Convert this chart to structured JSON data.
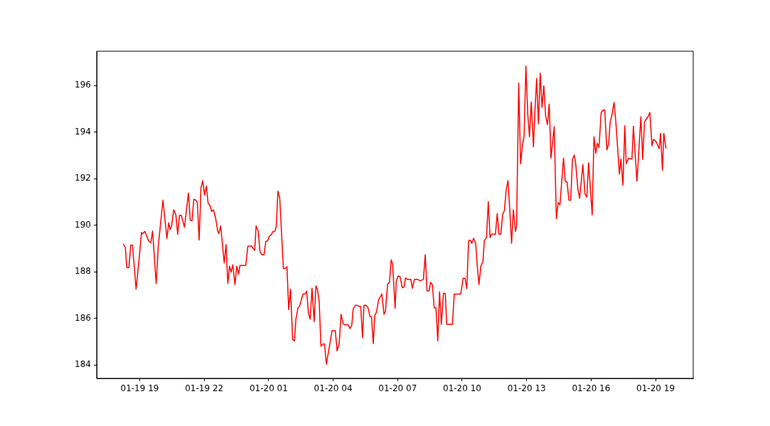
{
  "chart_data": {
    "type": "line",
    "x": [
      "--01-19T18:14",
      "--01-19T18:20",
      "--01-19T18:24",
      "--01-19T18:30",
      "--01-19T18:35",
      "--01-19T18:40",
      "--01-19T18:50",
      "--01-19T18:59",
      "--01-19T19:05",
      "--01-19T19:08",
      "--01-19T19:15",
      "--01-19T19:25",
      "--01-19T19:31",
      "--01-19T19:36",
      "--01-19T19:46",
      "--01-19T19:52",
      "--01-19T20:05",
      "--01-19T20:16",
      "--01-19T20:21",
      "--01-19T20:25",
      "--01-19T20:29",
      "--01-19T20:35",
      "--01-19T20:41",
      "--01-19T20:46",
      "--01-19T20:51",
      "--01-19T20:56",
      "--01-19T21:05",
      "--01-19T21:16",
      "--01-19T21:21",
      "--01-19T21:26",
      "--01-19T21:31",
      "--01-19T21:37",
      "--01-19T21:41",
      "--01-19T21:46",
      "--01-19T21:51",
      "--01-19T21:56",
      "--01-19T22:01",
      "--01-19T22:06",
      "--01-19T22:11",
      "--01-19T22:16",
      "--01-19T22:21",
      "--01-19T22:26",
      "--01-19T22:32",
      "--01-19T22:38",
      "--01-19T22:41",
      "--01-19T22:46",
      "--01-19T22:56",
      "--01-19T23:01",
      "--01-19T23:06",
      "--01-19T23:11",
      "--01-19T23:15",
      "--01-19T23:20",
      "--01-19T23:26",
      "--01-19T23:31",
      "--01-19T23:36",
      "--01-19T23:40",
      "--01-19T23:56",
      "--01-20T00:02",
      "--01-20T00:12",
      "--01-20T00:21",
      "--01-20T00:25",
      "--01-20T00:31",
      "--01-20T00:36",
      "--01-20T00:41",
      "--01-20T00:47",
      "--01-20T00:52",
      "--01-20T00:57",
      "--01-20T01:02",
      "--01-20T01:07",
      "--01-20T01:11",
      "--01-20T01:17",
      "--01-20T01:21",
      "--01-20T01:26",
      "--01-20T01:31",
      "--01-20T01:41",
      "--01-20T01:47",
      "--01-20T01:51",
      "--01-20T01:56",
      "--01-20T02:01",
      "--01-20T02:07",
      "--01-20T02:12",
      "--01-20T02:16",
      "--01-20T02:22",
      "--01-20T02:26",
      "--01-20T02:32",
      "--01-20T02:36",
      "--01-20T02:42",
      "--01-20T02:46",
      "--01-20T02:51",
      "--01-20T02:56",
      "--01-20T03:01",
      "--01-20T03:07",
      "--01-20T03:12",
      "--01-20T03:16",
      "--01-20T03:21",
      "--01-20T03:26",
      "--01-20T03:31",
      "--01-20T03:36",
      "--01-20T03:41",
      "--01-20T03:47",
      "--01-20T03:57",
      "--01-20T04:06",
      "--01-20T04:11",
      "--01-20T04:17",
      "--01-20T04:22",
      "--01-20T04:28",
      "--01-20T04:32",
      "--01-20T04:42",
      "--01-20T04:47",
      "--01-20T04:52",
      "--01-20T04:56",
      "--01-20T05:03",
      "--01-20T05:17",
      "--01-20T05:22",
      "--01-20T05:26",
      "--01-20T05:32",
      "--01-20T05:37",
      "--01-20T05:43",
      "--01-20T05:47",
      "--01-20T05:52",
      "--01-20T05:56",
      "--01-20T06:01",
      "--01-20T06:07",
      "--01-20T06:16",
      "--01-20T06:22",
      "--01-20T06:26",
      "--01-20T06:32",
      "--01-20T06:37",
      "--01-20T06:42",
      "--01-20T06:46",
      "--01-20T06:53",
      "--01-20T06:56",
      "--01-20T07:01",
      "--01-20T07:07",
      "--01-20T07:13",
      "--01-20T07:18",
      "--01-20T07:22",
      "--01-20T07:27",
      "--01-20T07:37",
      "--01-20T07:41",
      "--01-20T07:47",
      "--01-20T07:56",
      "--01-20T08:03",
      "--01-20T08:12",
      "--01-20T08:17",
      "--01-20T08:22",
      "--01-20T08:28",
      "--01-20T08:32",
      "--01-20T08:37",
      "--01-20T08:42",
      "--01-20T08:47",
      "--01-20T08:52",
      "--01-20T08:57",
      "--01-20T09:02",
      "--01-20T09:08",
      "--01-20T09:13",
      "--01-20T09:17",
      "--01-20T09:33",
      "--01-20T09:38",
      "--01-20T09:56",
      "--01-20T10:03",
      "--01-20T10:08",
      "--01-20T10:13",
      "--01-20T10:18",
      "--01-20T10:23",
      "--01-20T10:27",
      "--01-20T10:32",
      "--01-20T10:38",
      "--01-20T10:42",
      "--01-20T10:47",
      "--01-20T10:52",
      "--01-20T10:58",
      "--01-20T11:02",
      "--01-20T11:08",
      "--01-20T11:13",
      "--01-20T11:18",
      "--01-20T11:22",
      "--01-20T11:33",
      "--01-20T11:38",
      "--01-20T11:43",
      "--01-20T11:48",
      "--01-20T11:53",
      "--01-20T11:58",
      "--01-20T12:03",
      "--01-20T12:08",
      "--01-20T12:13",
      "--01-20T12:18",
      "--01-20T12:23",
      "--01-20T12:29",
      "--01-20T12:32",
      "--01-20T12:38",
      "--01-20T12:43",
      "--01-20T12:48",
      "--01-20T12:53",
      "--01-20T12:58",
      "--01-20T13:03",
      "--01-20T13:08",
      "--01-20T13:13",
      "--01-20T13:19",
      "--01-20T13:23",
      "--01-20T13:28",
      "--01-20T13:33",
      "--01-20T13:38",
      "--01-20T13:43",
      "--01-20T13:48",
      "--01-20T13:53",
      "--01-20T13:58",
      "--01-20T14:03",
      "--01-20T14:08",
      "--01-20T14:17",
      "--01-20T14:23",
      "--01-20T14:28",
      "--01-20T14:33",
      "--01-20T14:43",
      "--01-20T14:48",
      "--01-20T14:53",
      "--01-20T14:58",
      "--01-20T15:03",
      "--01-20T15:08",
      "--01-20T15:13",
      "--01-20T15:17",
      "--01-20T15:23",
      "--01-20T15:28",
      "--01-20T15:37",
      "--01-20T15:43",
      "--01-20T15:48",
      "--01-20T15:53",
      "--01-20T16:03",
      "--01-20T16:08",
      "--01-20T16:13",
      "--01-20T16:17",
      "--01-20T16:22",
      "--01-20T16:28",
      "--01-20T16:32",
      "--01-20T16:38",
      "--01-20T16:44",
      "--01-20T16:49",
      "--01-20T16:53",
      "--01-20T16:58",
      "--01-20T17:04",
      "--01-20T17:09",
      "--01-20T17:19",
      "--01-20T17:23",
      "--01-20T17:29",
      "--01-20T17:34",
      "--01-20T17:38",
      "--01-20T17:44",
      "--01-20T17:54",
      "--01-20T17:58",
      "--01-20T18:08",
      "--01-20T18:19",
      "--01-20T18:24",
      "--01-20T18:29",
      "--01-20T18:34",
      "--01-20T18:38",
      "--01-20T18:44",
      "--01-20T18:50",
      "--01-20T18:54",
      "--01-20T18:59",
      "--01-20T19:05",
      "--01-20T19:10",
      "--01-20T19:14",
      "--01-20T19:19",
      "--01-20T19:23",
      "--01-20T19:29"
    ],
    "series": [
      {
        "color": "#ff0000",
        "values": [
          189.2,
          189.04,
          188.18,
          188.18,
          189.14,
          189.14,
          187.25,
          188.64,
          189.69,
          189.63,
          189.73,
          189.32,
          189.24,
          189.75,
          187.49,
          189.12,
          191.07,
          189.43,
          190.1,
          189.81,
          189.95,
          190.66,
          190.44,
          189.61,
          190.42,
          190.42,
          189.91,
          191.38,
          190.22,
          190.18,
          191.11,
          191.07,
          190.97,
          189.36,
          191.6,
          191.91,
          191.3,
          191.68,
          190.95,
          190.85,
          190.59,
          190.66,
          190.3,
          189.73,
          189.63,
          189.97,
          188.37,
          189.16,
          187.49,
          188.24,
          187.98,
          188.3,
          187.45,
          188.24,
          187.9,
          188.27,
          188.27,
          189.1,
          189.1,
          188.92,
          189.97,
          189.73,
          188.83,
          188.73,
          188.73,
          189.3,
          189.32,
          189.53,
          189.57,
          189.71,
          189.73,
          189.91,
          191.46,
          191.15,
          188.14,
          188.14,
          188.22,
          186.37,
          187.25,
          185.09,
          185.03,
          185.96,
          186.45,
          186.51,
          186.84,
          187.04,
          187.04,
          187.17,
          186.23,
          185.96,
          187.29,
          185.86,
          187.39,
          187.25,
          186.72,
          184.8,
          184.89,
          184.89,
          184.03,
          184.56,
          185.47,
          185.47,
          184.6,
          184.93,
          186.17,
          185.76,
          185.72,
          185.72,
          185.56,
          185.7,
          186.41,
          186.57,
          186.49,
          185.17,
          186.56,
          186.56,
          186.47,
          186.07,
          186.07,
          184.91,
          186.11,
          186.27,
          186.8,
          187.04,
          186.17,
          186.29,
          187.47,
          187.53,
          188.51,
          188.33,
          186.43,
          187.57,
          187.82,
          187.78,
          187.31,
          187.35,
          187.73,
          187.67,
          187.67,
          187.29,
          187.67,
          187.67,
          187.61,
          187.67,
          188.73,
          187.18,
          187.18,
          187.55,
          187.43,
          186.45,
          186.45,
          185.03,
          187.14,
          185.74,
          187.08,
          187.06,
          185.74,
          185.74,
          187.04,
          187.04,
          187.72,
          187.72,
          187.27,
          189.32,
          189.36,
          189.22,
          189.44,
          189.2,
          188.3,
          187.45,
          188.22,
          188.43,
          189.34,
          189.47,
          191.01,
          189.47,
          189.61,
          189.61,
          190.5,
          189.61,
          189.61,
          190.44,
          190.63,
          191.52,
          191.91,
          190.66,
          189.22,
          190.66,
          189.73,
          189.95,
          196.1,
          192.64,
          193.39,
          193.84,
          196.83,
          194.82,
          193.8,
          195.29,
          193.37,
          194.82,
          196.3,
          194.35,
          196.53,
          195.06,
          195.98,
          194.72,
          194.31,
          195.2,
          192.88,
          194.23,
          190.28,
          190.97,
          190.87,
          192.88,
          191.87,
          191.85,
          191.07,
          191.07,
          192.82,
          193.01,
          192.64,
          191.56,
          191.15,
          192.6,
          191.34,
          191.2,
          192.68,
          190.44,
          193.8,
          193.09,
          193.52,
          193.33,
          194.82,
          194.92,
          194.96,
          193.23,
          193.5,
          194.41,
          194.72,
          195.27,
          194.45,
          192.19,
          192.84,
          191.72,
          194.27,
          192.64,
          192.86,
          192.84,
          194.25,
          191.89,
          194.66,
          192.82,
          194.41,
          194.57,
          194.62,
          194.84,
          193.41,
          193.68,
          193.64,
          193.47,
          193.29,
          193.94,
          192.36,
          193.94,
          193.29
        ]
      }
    ],
    "xlim": [
      "--01-19T17:00",
      "--01-20T20:45"
    ],
    "xticks": [
      {
        "value": "--01-19T19:00",
        "label": "01-19 19"
      },
      {
        "value": "--01-19T22:00",
        "label": "01-19 22"
      },
      {
        "value": "--01-20T01:00",
        "label": "01-20 01"
      },
      {
        "value": "--01-20T04:00",
        "label": "01-20 04"
      },
      {
        "value": "--01-20T07:00",
        "label": "01-20 07"
      },
      {
        "value": "--01-20T10:00",
        "label": "01-20 10"
      },
      {
        "value": "--01-20T13:00",
        "label": "01-20 13"
      },
      {
        "value": "--01-20T16:00",
        "label": "01-20 16"
      },
      {
        "value": "--01-20T19:00",
        "label": "01-20 19"
      }
    ],
    "ylim": [
      183.42,
      197.47
    ],
    "yticks": [
      184,
      186,
      188,
      190,
      192,
      194,
      196
    ],
    "grid": false,
    "marker": "none",
    "line_style": "solid"
  }
}
